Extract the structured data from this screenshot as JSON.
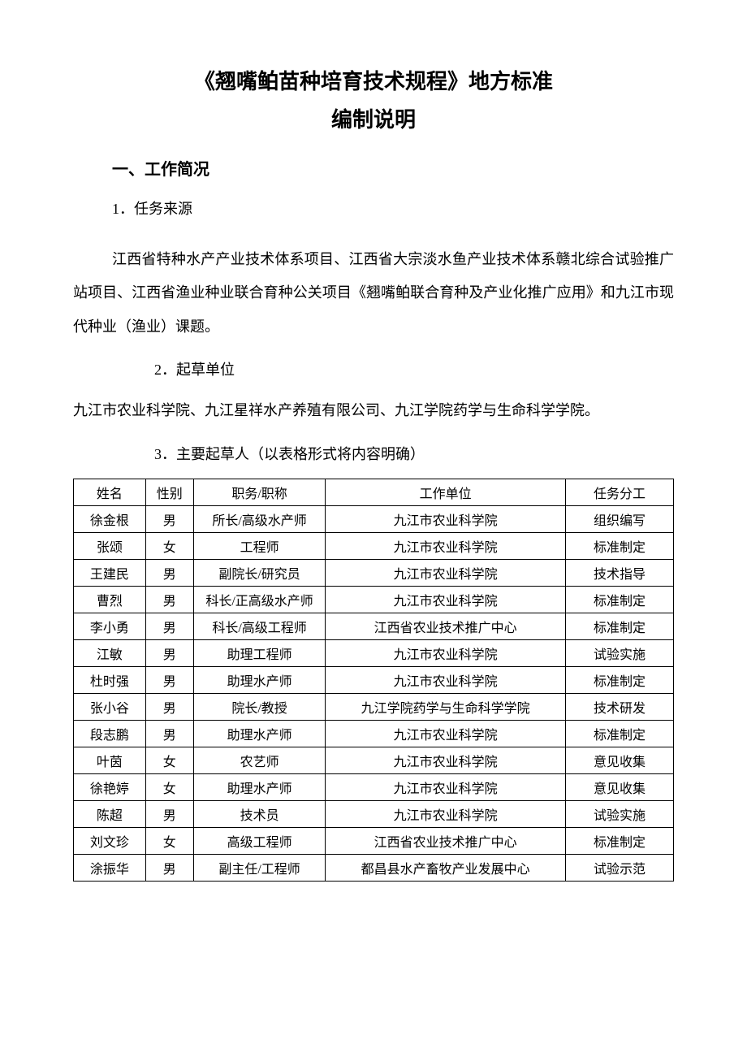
{
  "title_main": "《翘嘴鲌苗种培育技术规程》地方标准",
  "title_sub": "编制说明",
  "section1_heading": "一、工作简况",
  "s1_h1": "1．任务来源",
  "s1_p1": "江西省特种水产产业技术体系项目、江西省大宗淡水鱼产业技术体系赣北综合试验推广站项目、江西省渔业种业联合育种公关项目《翘嘴鲌联合育种及产业化推广应用》和九江市现代种业（渔业）课题。",
  "s1_h2": "2．起草单位",
  "s1_p2": "九江市农业科学院、九江星祥水产养殖有限公司、九江学院药学与生命科学学院。",
  "s1_h3": "3．主要起草人（以表格形式将内容明确）",
  "table": {
    "columns": [
      "姓名",
      "性别",
      "职务/职称",
      "工作单位",
      "任务分工"
    ],
    "rows": [
      [
        "徐金根",
        "男",
        "所长/高级水产师",
        "九江市农业科学院",
        "组织编写"
      ],
      [
        "张颂",
        "女",
        "工程师",
        "九江市农业科学院",
        "标准制定"
      ],
      [
        "王建民",
        "男",
        "副院长/研究员",
        "九江市农业科学院",
        "技术指导"
      ],
      [
        "曹烈",
        "男",
        "科长/正高级水产师",
        "九江市农业科学院",
        "标准制定"
      ],
      [
        "李小勇",
        "男",
        "科长/高级工程师",
        "江西省农业技术推广中心",
        "标准制定"
      ],
      [
        "江敏",
        "男",
        "助理工程师",
        "九江市农业科学院",
        "试验实施"
      ],
      [
        "杜时强",
        "男",
        "助理水产师",
        "九江市农业科学院",
        "标准制定"
      ],
      [
        "张小谷",
        "男",
        "院长/教授",
        "九江学院药学与生命科学学院",
        "技术研发"
      ],
      [
        "段志鹏",
        "男",
        "助理水产师",
        "九江市农业科学院",
        "标准制定"
      ],
      [
        "叶茵",
        "女",
        "农艺师",
        "九江市农业科学院",
        "意见收集"
      ],
      [
        "徐艳婷",
        "女",
        "助理水产师",
        "九江市农业科学院",
        "意见收集"
      ],
      [
        "陈超",
        "男",
        "技术员",
        "九江市农业科学院",
        "试验实施"
      ],
      [
        "刘文珍",
        "女",
        "高级工程师",
        "江西省农业技术推广中心",
        "标准制定"
      ],
      [
        "涂振华",
        "男",
        "副主任/工程师",
        "都昌县水产畜牧产业发展中心",
        "试验示范"
      ]
    ]
  }
}
